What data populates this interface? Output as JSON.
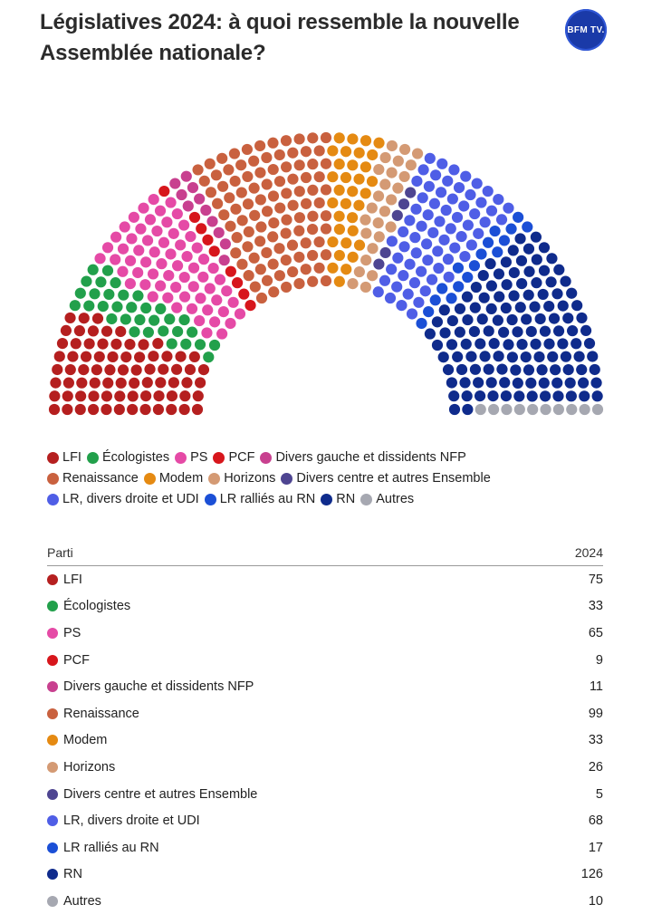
{
  "header": {
    "title": "Législatives 2024: à quoi ressemble la nouvelle Assemblée nationale?",
    "logo_text": "BFM TV."
  },
  "table": {
    "col_party": "Parti",
    "col_year": "2024"
  },
  "chart_data": {
    "type": "hemicycle",
    "total_seats": 577,
    "parties": [
      {
        "name": "LFI",
        "seats": 75,
        "color": "#b51f1f"
      },
      {
        "name": "Écologistes",
        "seats": 33,
        "color": "#22a04b"
      },
      {
        "name": "PS",
        "seats": 65,
        "color": "#e54aa6"
      },
      {
        "name": "PCF",
        "seats": 9,
        "color": "#d7161c"
      },
      {
        "name": "Divers gauche et dissidents NFP",
        "seats": 11,
        "color": "#c8408f"
      },
      {
        "name": "Renaissance",
        "seats": 99,
        "color": "#c9613f"
      },
      {
        "name": "Modem",
        "seats": 33,
        "color": "#e58a12"
      },
      {
        "name": "Horizons",
        "seats": 26,
        "color": "#d49a74"
      },
      {
        "name": "Divers centre et autres Ensemble",
        "seats": 5,
        "color": "#4e4591"
      },
      {
        "name": "LR, divers droite et UDI",
        "seats": 68,
        "color": "#4f5ee6"
      },
      {
        "name": "LR ralliés au RN",
        "seats": 17,
        "color": "#1b4fd6"
      },
      {
        "name": "RN",
        "seats": 126,
        "color": "#0f2b8c"
      },
      {
        "name": "Autres",
        "seats": 10,
        "color": "#a6a8b1"
      }
    ],
    "legend_rows": [
      [
        0,
        1,
        2,
        3,
        4
      ],
      [
        5,
        6,
        7,
        8
      ],
      [
        9,
        10,
        11,
        12
      ]
    ]
  }
}
